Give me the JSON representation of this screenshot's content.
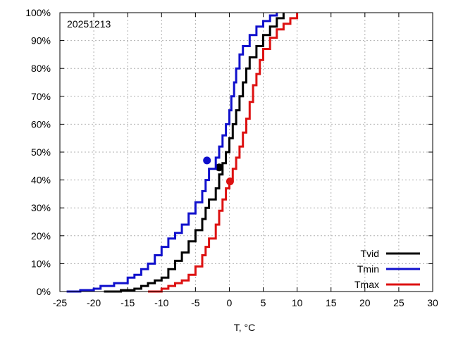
{
  "chart_data": {
    "type": "line",
    "annotation": "20251213",
    "xlabel": "T, °C",
    "ylabel": "",
    "xlim": [
      -25,
      30
    ],
    "ylim": [
      0,
      100
    ],
    "x_ticks": [
      -25,
      -20,
      -15,
      -10,
      -5,
      0,
      5,
      10,
      15,
      20,
      25,
      30
    ],
    "x_tick_labels": [
      "-25",
      "-20",
      "-15",
      "-10",
      "-5",
      "0",
      "5",
      "10",
      "15",
      "20",
      "25",
      "30"
    ],
    "y_ticks": [
      0,
      10,
      20,
      30,
      40,
      50,
      60,
      70,
      80,
      90,
      100
    ],
    "y_tick_labels": [
      "0%",
      "10%",
      "20%",
      "30%",
      "40%",
      "50%",
      "60%",
      "70%",
      "80%",
      "90%",
      "100%"
    ],
    "grid": true,
    "legend_position": "bottom-right",
    "series": [
      {
        "name": "Tvid",
        "color": "#000000",
        "points": [
          [
            -18.5,
            0
          ],
          [
            -16,
            0.5
          ],
          [
            -14,
            1
          ],
          [
            -13,
            2
          ],
          [
            -12,
            3
          ],
          [
            -11,
            4
          ],
          [
            -10,
            5
          ],
          [
            -9,
            8
          ],
          [
            -8,
            11
          ],
          [
            -7,
            14
          ],
          [
            -6,
            18
          ],
          [
            -5,
            22
          ],
          [
            -4,
            26
          ],
          [
            -3.5,
            30
          ],
          [
            -3,
            33
          ],
          [
            -2,
            37
          ],
          [
            -1.5,
            42
          ],
          [
            -1,
            46
          ],
          [
            -0.5,
            50
          ],
          [
            0,
            55
          ],
          [
            0.5,
            60
          ],
          [
            1,
            65
          ],
          [
            1.5,
            70
          ],
          [
            2,
            75
          ],
          [
            2.5,
            80
          ],
          [
            3,
            84
          ],
          [
            4,
            88
          ],
          [
            5,
            92
          ],
          [
            6,
            95
          ],
          [
            7,
            98
          ],
          [
            8,
            100
          ]
        ],
        "marker": [
          -1.5,
          44.5
        ]
      },
      {
        "name": "Tmin",
        "color": "#1010cc",
        "points": [
          [
            -24,
            0
          ],
          [
            -22,
            0.5
          ],
          [
            -20,
            1
          ],
          [
            -19,
            2
          ],
          [
            -17,
            3
          ],
          [
            -15,
            5
          ],
          [
            -14,
            6
          ],
          [
            -13,
            8
          ],
          [
            -12,
            10
          ],
          [
            -11,
            13
          ],
          [
            -10,
            16
          ],
          [
            -9,
            19
          ],
          [
            -8,
            21
          ],
          [
            -7,
            24
          ],
          [
            -6,
            28
          ],
          [
            -5,
            32
          ],
          [
            -4,
            36
          ],
          [
            -3.5,
            40
          ],
          [
            -3,
            44
          ],
          [
            -2,
            48
          ],
          [
            -1.5,
            52
          ],
          [
            -1,
            56
          ],
          [
            -0.5,
            60
          ],
          [
            0,
            65
          ],
          [
            0.3,
            70
          ],
          [
            0.7,
            75
          ],
          [
            1,
            80
          ],
          [
            1.5,
            85
          ],
          [
            2,
            88
          ],
          [
            3,
            92
          ],
          [
            4,
            95
          ],
          [
            5,
            97
          ],
          [
            6,
            99
          ],
          [
            7,
            100
          ]
        ],
        "marker": [
          -3.3,
          47
        ]
      },
      {
        "name": "Tmax",
        "color": "#dd1111",
        "points": [
          [
            -12,
            0
          ],
          [
            -10,
            1
          ],
          [
            -9,
            2
          ],
          [
            -8,
            3
          ],
          [
            -7,
            4
          ],
          [
            -6,
            6
          ],
          [
            -5,
            9
          ],
          [
            -4,
            13
          ],
          [
            -3.5,
            16
          ],
          [
            -3,
            19
          ],
          [
            -2,
            24
          ],
          [
            -1.5,
            29
          ],
          [
            -1,
            33
          ],
          [
            -0.5,
            37
          ],
          [
            0,
            40
          ],
          [
            0.5,
            44
          ],
          [
            1,
            48
          ],
          [
            1.5,
            52
          ],
          [
            2,
            57
          ],
          [
            2.5,
            62
          ],
          [
            3,
            68
          ],
          [
            3.5,
            74
          ],
          [
            4,
            78
          ],
          [
            4.5,
            83
          ],
          [
            5,
            87
          ],
          [
            6,
            91
          ],
          [
            7,
            94
          ],
          [
            8,
            96
          ],
          [
            9,
            98
          ],
          [
            10,
            100
          ]
        ],
        "marker": [
          0.1,
          39.5
        ]
      }
    ]
  }
}
